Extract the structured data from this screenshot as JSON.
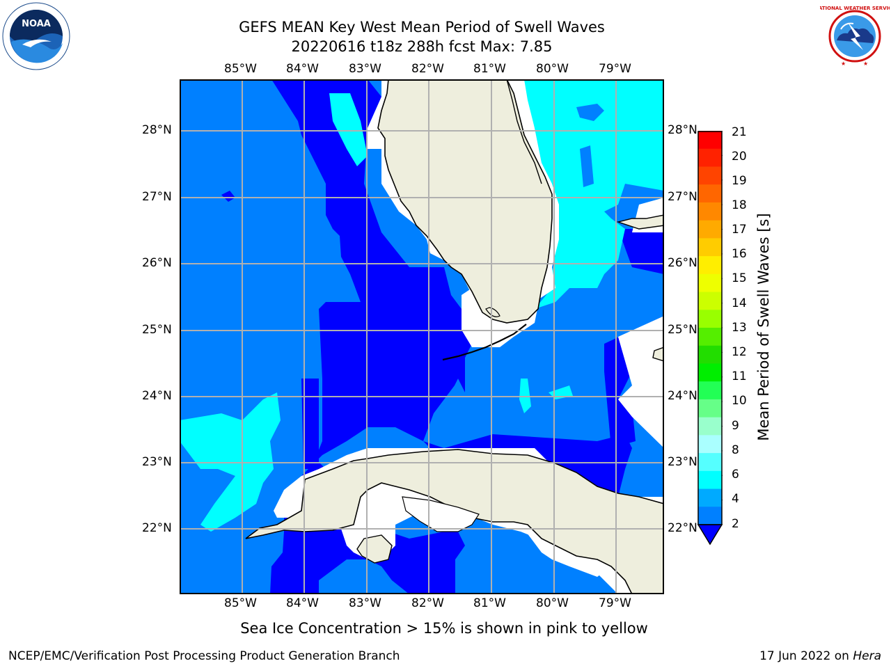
{
  "title": {
    "line1": "GEFS MEAN Key West Mean Period of Swell Waves",
    "line2": "20220616 t18z 288h fcst   Max: 7.85"
  },
  "logos": {
    "left": {
      "text": "NOAA",
      "icon": "noaa-logo-icon"
    },
    "right": {
      "text": "NATIONAL WEATHER SERVICE",
      "icon": "nws-logo-icon"
    }
  },
  "map": {
    "lon_labels": [
      "85°W",
      "84°W",
      "83°W",
      "82°W",
      "81°W",
      "80°W",
      "79°W"
    ],
    "lat_labels": [
      "28°N",
      "27°N",
      "26°N",
      "25°N",
      "24°N",
      "23°N",
      "22°N"
    ],
    "colors": {
      "land": "#eeeedd",
      "level_2_4": "#0080ff",
      "level_4_6": "#00ffff",
      "below_2": "#0000ff",
      "missing": "#ffffff"
    }
  },
  "colorbar": {
    "label": "Mean Period of Swell Waves [s]",
    "ticks": [
      "21",
      "20",
      "19",
      "18",
      "17",
      "16",
      "15",
      "14",
      "13",
      "12",
      "11",
      "10",
      "9",
      "8",
      "6",
      "4",
      "2"
    ],
    "colors": [
      "#ff0000",
      "#ff2200",
      "#ff4400",
      "#ff6600",
      "#ff8800",
      "#ffaa00",
      "#ffcc00",
      "#ffee00",
      "#eeff00",
      "#ccff00",
      "#99ff00",
      "#55ee00",
      "#22dd00",
      "#00ee00",
      "#22ff55",
      "#66ff88",
      "#99ffcc",
      "#aaffff",
      "#55ffff",
      "#00ffff",
      "#00aaff",
      "#0080ff"
    ]
  },
  "caption": "Sea Ice Concentration > 15% is shown in pink to yellow",
  "footer": {
    "left": "NCEP/EMC/Verification Post Processing Product Generation Branch",
    "right_date": "17 Jun 2022 on ",
    "right_host": "Hera"
  }
}
